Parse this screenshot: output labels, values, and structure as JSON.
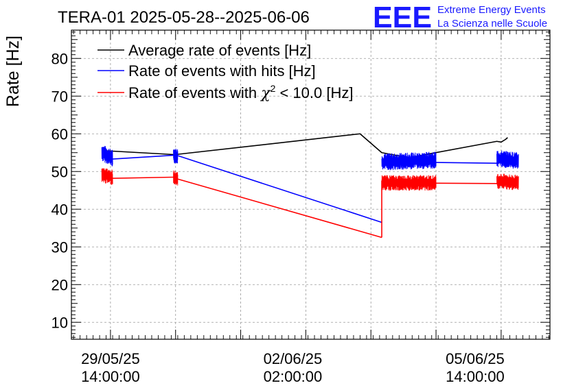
{
  "header": {
    "title": "TERA-01 2025-05-28--2025-06-06",
    "logo_mark": "EEE",
    "logo_line1": "Extreme Energy Events",
    "logo_line2": "La Scienza nelle Scuole"
  },
  "colors": {
    "average": "#000000",
    "hits": "#0000ff",
    "chi2": "#ff0000",
    "logo": "#1a1aff",
    "grid": "#999999"
  },
  "chart_data": {
    "type": "line",
    "title": "TERA-01 2025-05-28--2025-06-06",
    "ylabel": "Rate [Hz]",
    "xlabel": "",
    "ylim": [
      5.5,
      87.5
    ],
    "xlim": [
      "2025-05-28 20:00",
      "2025-06-07 00:30"
    ],
    "yticks": [
      10,
      20,
      30,
      40,
      50,
      60,
      70,
      80
    ],
    "xticks": [
      {
        "x": "2025-05-29 14:00",
        "date": "29/05/25",
        "time": "14:00:00"
      },
      {
        "x": "2025-06-02 02:00",
        "date": "02/06/25",
        "time": "02:00:00"
      },
      {
        "x": "2025-06-05 14:00",
        "date": "05/06/25",
        "time": "14:00:00"
      }
    ],
    "grid": true,
    "legend": {
      "placement": "top-left",
      "entries": [
        {
          "key": "average",
          "label": "Average rate of events [Hz]"
        },
        {
          "key": "hits",
          "label": "Rate of events with hits [Hz]"
        },
        {
          "key": "chi2",
          "label_prefix": "Rate of events with ",
          "chi_symbol": "χ",
          "chi_sup": "2",
          "label_suffix": " < 10.0 [Hz]"
        }
      ]
    },
    "series": [
      {
        "key": "average",
        "name": "Average rate of events [Hz]",
        "segments": [
          {
            "x": [
              "2025-05-29 11:00",
              "2025-05-29 12:00",
              "2025-05-30 19:00",
              "2025-05-30 20:00",
              "2025-06-03 09:00",
              "2025-06-03 19:00",
              "2025-06-04 09:00",
              "2025-06-04 10:00",
              "2025-06-04 10:30",
              "2025-06-06 00:00",
              "2025-06-06 02:00",
              "2025-06-06 04:00",
              "2025-06-06 05:00"
            ],
            "y": [
              55.5,
              55.5,
              54.5,
              54.5,
              60.0,
              55.0,
              53.5,
              53.8,
              54.0,
              58.0,
              57.8,
              58.5,
              59.0
            ]
          }
        ]
      },
      {
        "key": "hits",
        "name": "Rate of events with hits [Hz]",
        "segments": [
          {
            "x": [
              "2025-05-29 10:00",
              "2025-05-29 15:00"
            ],
            "y": [
              55.0,
              53.5
            ],
            "noisy": true,
            "amp": 2.2
          },
          {
            "x": [
              "2025-05-29 15:00",
              "2025-05-30 19:00"
            ],
            "y": [
              53.3,
              54.3
            ]
          },
          {
            "x": [
              "2025-05-30 19:00",
              "2025-05-30 21:00"
            ],
            "y": [
              54.3,
              54.0
            ],
            "noisy": true,
            "amp": 2.0
          },
          {
            "x": [
              "2025-05-30 21:00",
              "2025-06-03 19:00"
            ],
            "y": [
              54.2,
              36.5
            ]
          },
          {
            "x": [
              "2025-06-03 19:00",
              "2025-06-04 20:00"
            ],
            "y": [
              52.5,
              53.0
            ],
            "noisy": true,
            "amp": 2.2
          },
          {
            "x": [
              "2025-06-04 20:00",
              "2025-06-06 00:00"
            ],
            "y": [
              52.4,
              52.2
            ]
          },
          {
            "x": [
              "2025-06-06 00:00",
              "2025-06-06 10:00"
            ],
            "y": [
              53.5,
              52.8
            ],
            "noisy": true,
            "amp": 2.2
          }
        ]
      },
      {
        "key": "chi2",
        "name": "Rate of events with χ2 < 10.0 [Hz]",
        "segments": [
          {
            "x": [
              "2025-05-29 10:00",
              "2025-05-29 15:00"
            ],
            "y": [
              49.0,
              48.5
            ],
            "noisy": true,
            "amp": 2.0
          },
          {
            "x": [
              "2025-05-29 15:00",
              "2025-05-30 19:00"
            ],
            "y": [
              48.2,
              48.5
            ]
          },
          {
            "x": [
              "2025-05-30 19:00",
              "2025-05-30 21:00"
            ],
            "y": [
              48.5,
              48.0
            ],
            "noisy": true,
            "amp": 1.8
          },
          {
            "x": [
              "2025-05-30 21:00",
              "2025-06-03 19:00"
            ],
            "y": [
              48.0,
              32.5
            ]
          },
          {
            "x": [
              "2025-06-03 19:00",
              "2025-06-03 19:00"
            ],
            "y": [
              32.5,
              47.5
            ]
          },
          {
            "x": [
              "2025-06-03 19:00",
              "2025-06-04 20:00"
            ],
            "y": [
              47.0,
              47.0
            ],
            "noisy": true,
            "amp": 2.0
          },
          {
            "x": [
              "2025-06-04 20:00",
              "2025-06-06 00:00"
            ],
            "y": [
              46.9,
              46.8
            ]
          },
          {
            "x": [
              "2025-06-06 00:00",
              "2025-06-06 10:00"
            ],
            "y": [
              47.5,
              47.0
            ],
            "noisy": true,
            "amp": 2.0
          }
        ]
      }
    ]
  }
}
